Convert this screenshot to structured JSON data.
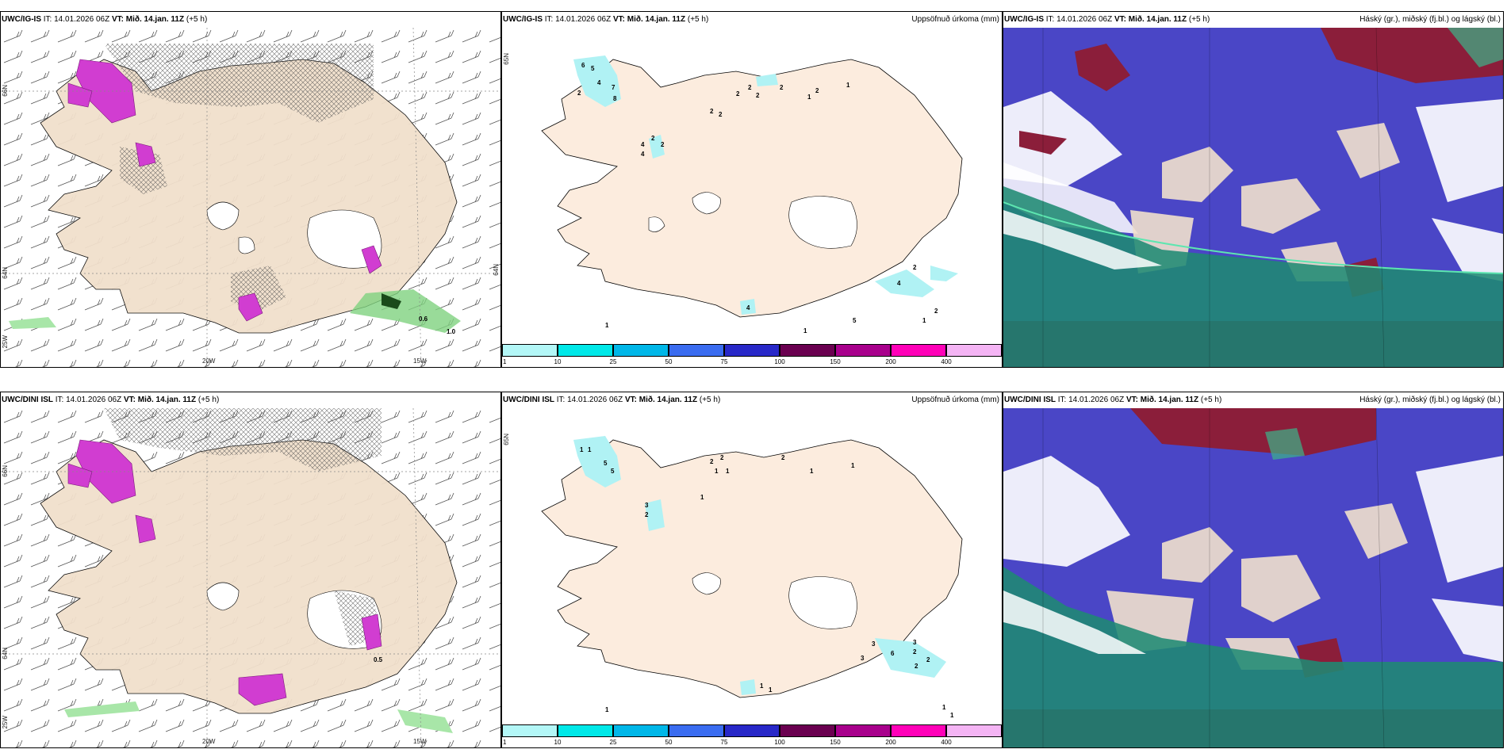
{
  "rows": [
    {
      "model": "UWC/IG-IS",
      "it": "IT: 14.01.2026 06Z",
      "vt": "VT: Mið. 14.jan. 11Z",
      "lead": "(+5 h)"
    },
    {
      "model": "UWC/DINI ISL",
      "it": "IT: 14.01.2026 06Z",
      "vt": "VT: Mið. 14.jan. 11Z",
      "lead": "(+5 h)"
    }
  ],
  "precip_title": "Uppsöfnuð úrkoma (mm)",
  "cloud_title": "Háský (gr.), miðský (fj.bl.) og lágský (bl.)",
  "axis": {
    "lat66": "66N",
    "lat64": "64N",
    "lon25": "25W",
    "lon20": "20W",
    "lon15": "15W",
    "lat65": "65N"
  },
  "wind_labels_top": [
    "0.6",
    "1.0"
  ],
  "wind_labels_bottom": [
    "0.5"
  ],
  "colorbar": {
    "ticks": [
      "1",
      "10",
      "25",
      "50",
      "75",
      "100",
      "150",
      "200",
      "400"
    ],
    "colors": [
      "#b3f7f7",
      "#00e8e8",
      "#00b7e8",
      "#3a6cf0",
      "#2828c8",
      "#6a0050",
      "#a8008c",
      "#ff00b8",
      "#f4b4f4"
    ]
  },
  "precip_values_top": [
    "6",
    "5",
    "2",
    "4",
    "7",
    "8",
    "2",
    "4",
    "4",
    "2",
    "2",
    "2",
    "2",
    "2",
    "2",
    "2",
    "1",
    "2",
    "4",
    "2",
    "1",
    "2",
    "5",
    "1",
    "1",
    "1",
    "4"
  ],
  "precip_values_bottom": [
    "1",
    "1",
    "5",
    "5",
    "3",
    "2",
    "2",
    "2",
    "1",
    "1",
    "2",
    "1",
    "1",
    "3",
    "3",
    "6",
    "2",
    "2",
    "3",
    "2",
    "1",
    "1",
    "1",
    "1",
    "1",
    "1"
  ],
  "colors": {
    "land": "#f1e0cc",
    "landPrecip": "#fcecde",
    "magenta": "#d13dd1",
    "cyan": "#b0f2f4",
    "cloudHigh": "#8b1e3a",
    "cloudMid": "#4a46c6",
    "cloudLow": "#1f8a73"
  }
}
